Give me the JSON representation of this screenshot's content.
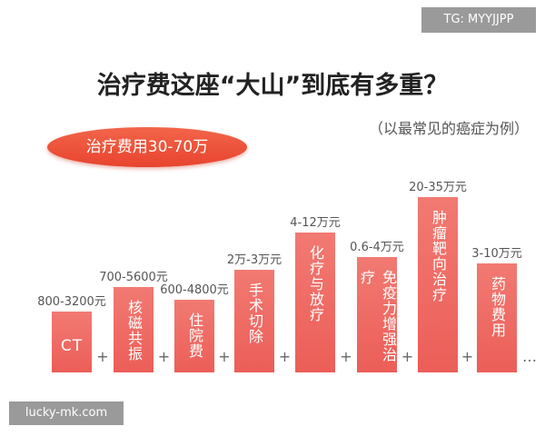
{
  "watermark_top": "TG: MYYJJPP",
  "title": "治疗费这座“大山”到底有多重？",
  "subtitle": "（以最常见的癌症为例）",
  "badge": "治疗费用30-70万",
  "items": [
    {
      "cost": "800-3200元",
      "name": "CT"
    },
    {
      "cost": "700-5600元",
      "name": "核磁共振"
    },
    {
      "cost": "600-4800元",
      "name": "住院费"
    },
    {
      "cost": "2万-3万元",
      "name": "手术切除"
    },
    {
      "cost": "4-12万元",
      "name": "化疗与放疗"
    },
    {
      "cost": "0.6-4万元",
      "name": "免疫力增强治疗"
    },
    {
      "cost": "20-35万元",
      "name": "肿瘤靶向治疗"
    },
    {
      "cost": "3-10万元",
      "name": "药物费用"
    }
  ],
  "separators": [
    "+",
    "+",
    "+",
    "+",
    "+",
    "+",
    "+",
    "…"
  ],
  "watermark_bottom": "lucky-mk.com"
}
